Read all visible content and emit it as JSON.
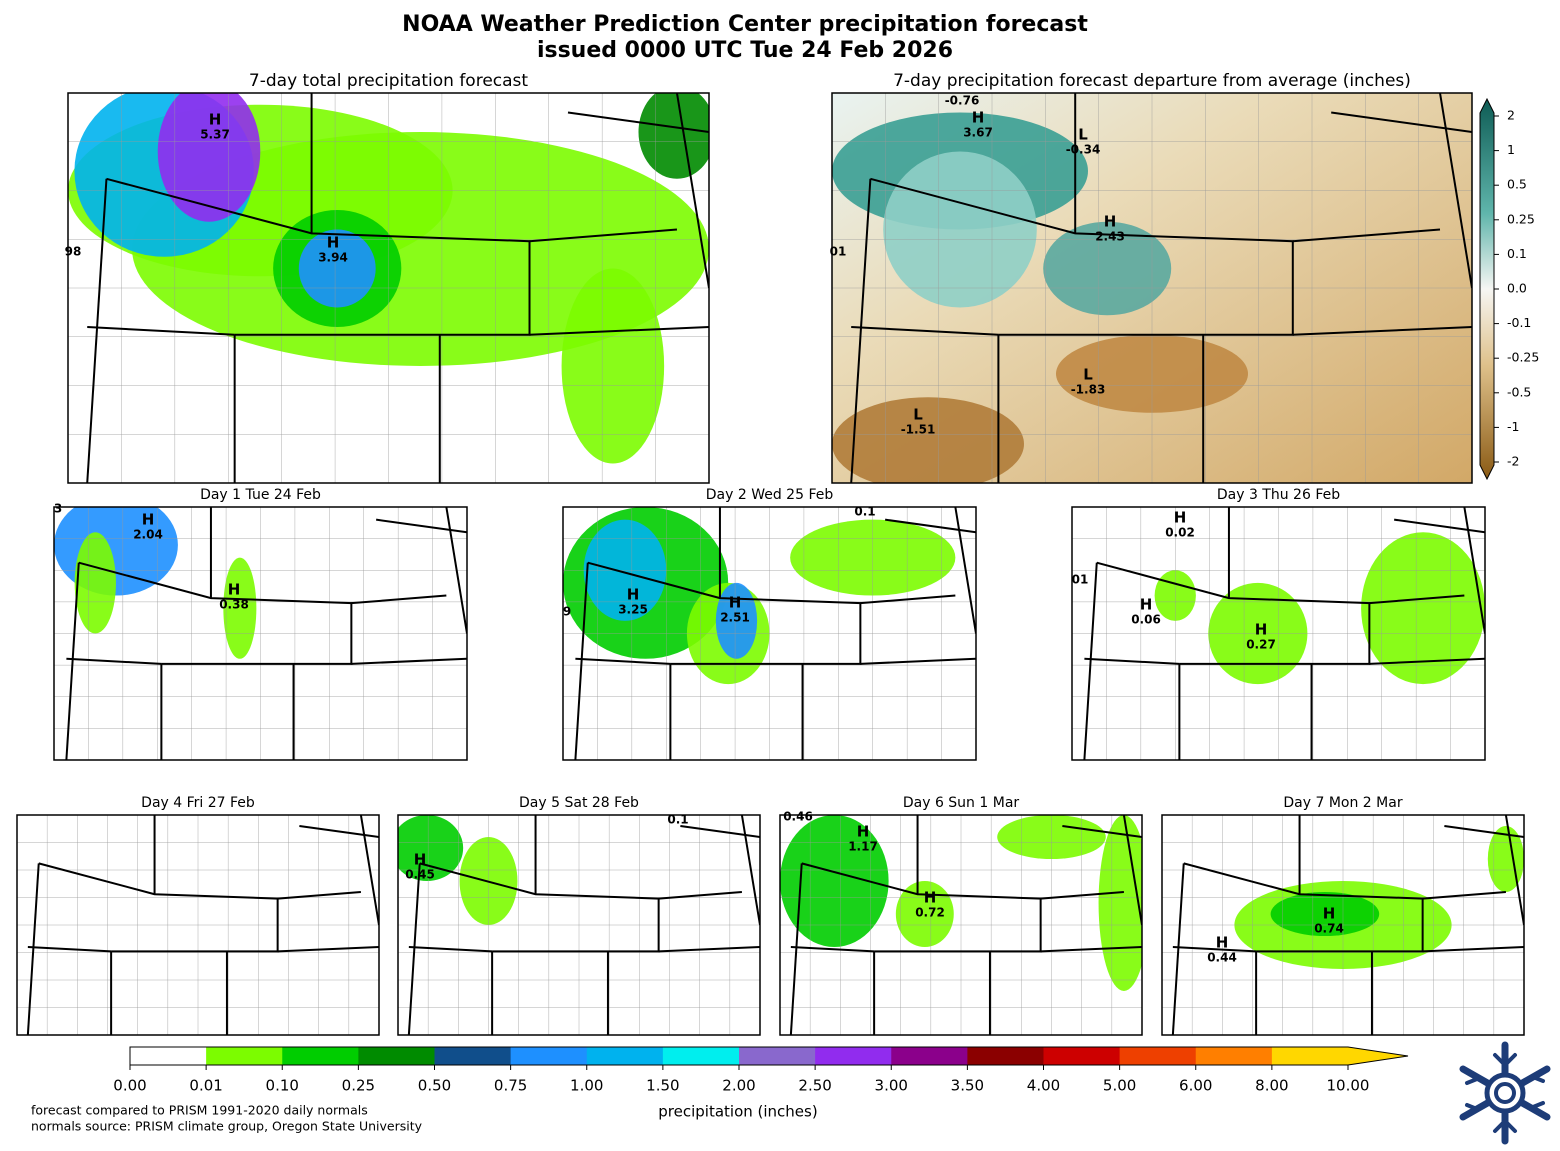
{
  "title": "NOAA Weather Prediction Center precipitation forecast",
  "subtitle": "issued 0000 UTC Tue 24 Feb 2026",
  "panels": [
    {
      "title": "7-day total precipitation forecast",
      "markers": [
        {
          "kind": "H",
          "value": "5.37"
        },
        {
          "kind": "H",
          "value": "3.94"
        },
        {
          "value": "98"
        }
      ]
    },
    {
      "title": "7-day precipitation forecast departure from average (inches)",
      "markers": [
        {
          "value": "-0.76"
        },
        {
          "kind": "H",
          "value": "3.67"
        },
        {
          "kind": "L",
          "value": "-0.34"
        },
        {
          "kind": "H",
          "value": "2.43"
        },
        {
          "kind": "L",
          "value": "-1.83"
        },
        {
          "kind": "L",
          "value": "-1.51"
        },
        {
          "value": "01"
        }
      ]
    },
    {
      "title": "Day 1  Tue 24 Feb",
      "markers": [
        {
          "value": "3"
        },
        {
          "kind": "H",
          "value": "2.04"
        },
        {
          "kind": "H",
          "value": "0.38"
        }
      ]
    },
    {
      "title": "Day 2  Wed 25 Feb",
      "markers": [
        {
          "value": "0.1"
        },
        {
          "kind": "H",
          "value": "3.25"
        },
        {
          "kind": "H",
          "value": "2.51"
        },
        {
          "value": "9"
        }
      ]
    },
    {
      "title": "Day 3  Thu 26 Feb",
      "markers": [
        {
          "kind": "H",
          "value": "0.02"
        },
        {
          "value": "01"
        },
        {
          "kind": "H",
          "value": "0.06"
        },
        {
          "kind": "H",
          "value": "0.27"
        }
      ]
    },
    {
      "title": "Day 4  Fri 27 Feb",
      "markers": []
    },
    {
      "title": "Day 5  Sat 28 Feb",
      "markers": [
        {
          "value": "0.1"
        },
        {
          "kind": "H",
          "value": "0.45"
        }
      ]
    },
    {
      "title": "Day 6  Sun 1 Mar",
      "markers": [
        {
          "value": "0.46"
        },
        {
          "kind": "H",
          "value": "1.17"
        },
        {
          "kind": "H",
          "value": "0.72"
        }
      ]
    },
    {
      "title": "Day 7  Mon 2 Mar",
      "markers": [
        {
          "kind": "H",
          "value": "0.74"
        },
        {
          "kind": "H",
          "value": "0.44"
        }
      ]
    }
  ],
  "departure_colorbar": {
    "ticks": [
      "2",
      "1",
      "0.5",
      "0.25",
      "0.1",
      "0.0",
      "-0.1",
      "-0.25",
      "-0.5",
      "-1",
      "-2"
    ]
  },
  "colorbar": {
    "label": "precipitation (inches)",
    "ticks": [
      "0.00",
      "0.01",
      "0.10",
      "0.25",
      "0.50",
      "0.75",
      "1.00",
      "1.50",
      "2.00",
      "2.50",
      "3.00",
      "3.50",
      "4.00",
      "5.00",
      "6.00",
      "8.00",
      "10.00"
    ],
    "colors": [
      "#ffffff",
      "#7cfc00",
      "#00cd00",
      "#008b00",
      "#104e8b",
      "#1e90ff",
      "#00b2ee",
      "#00eeee",
      "#8968cd",
      "#912cee",
      "#8b008b",
      "#8b0000",
      "#cd0000",
      "#ee4000",
      "#ff7f00",
      "#ffd700"
    ],
    "extend_color": "#ffd700"
  },
  "footnotes": [
    "forecast compared to PRISM 1991-2020 daily normals",
    "normals source: PRISM climate group, Oregon State University"
  ]
}
